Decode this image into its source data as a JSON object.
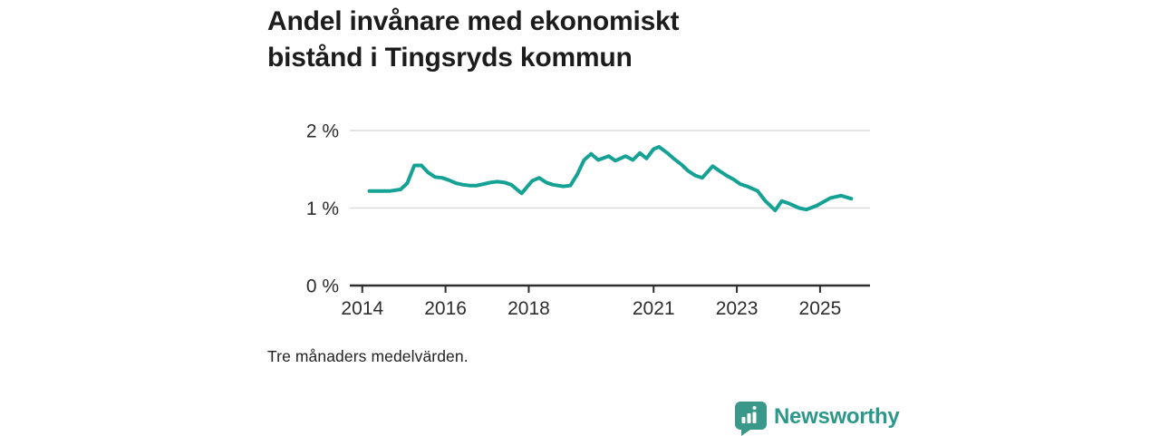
{
  "header": {
    "title": "Andel invånare med ekonomiskt bistånd i Tingsryds kommun",
    "title_lines": [
      "Andel invånare med ekonomiskt",
      "bistånd i Tingsryds kommun"
    ]
  },
  "footnote": "Tre månaders medelvärden.",
  "branding": {
    "name": "Newsworthy",
    "logo_icon": "bar-chart-speech-bubble-icon",
    "brand_color": "#2d9889"
  },
  "chart_data": {
    "type": "line",
    "title": "Andel invånare med ekonomiskt bistånd i Tingsryds kommun",
    "subtitle": "Tre månaders medelvärden.",
    "xlabel": "",
    "ylabel": "",
    "x_unit": "year",
    "xlim": [
      2013.7,
      2026.2
    ],
    "ylim": [
      0,
      2
    ],
    "grid": "horizontal",
    "legend": "none",
    "line_color": "#15a294",
    "grid_color": "#dbdbdb",
    "axis_color": "#2d2d2d",
    "yticks": [
      {
        "value": 0,
        "label": "0 %"
      },
      {
        "value": 1,
        "label": "1 %"
      },
      {
        "value": 2,
        "label": "2 %"
      }
    ],
    "xticks": [
      {
        "value": 2014,
        "label": "2014"
      },
      {
        "value": 2016,
        "label": "2016"
      },
      {
        "value": 2018,
        "label": "2018"
      },
      {
        "value": 2021,
        "label": "2021"
      },
      {
        "value": 2023,
        "label": "2023"
      },
      {
        "value": 2025,
        "label": "2025"
      }
    ],
    "series": [
      {
        "name": "Andel invånare med ekonomiskt bistånd (%)",
        "points": [
          [
            2014.17,
            1.22
          ],
          [
            2014.42,
            1.22
          ],
          [
            2014.67,
            1.22
          ],
          [
            2014.92,
            1.24
          ],
          [
            2015.08,
            1.32
          ],
          [
            2015.25,
            1.55
          ],
          [
            2015.42,
            1.55
          ],
          [
            2015.58,
            1.46
          ],
          [
            2015.75,
            1.4
          ],
          [
            2015.92,
            1.39
          ],
          [
            2016.08,
            1.36
          ],
          [
            2016.25,
            1.32
          ],
          [
            2016.42,
            1.3
          ],
          [
            2016.58,
            1.29
          ],
          [
            2016.75,
            1.29
          ],
          [
            2016.92,
            1.31
          ],
          [
            2017.08,
            1.33
          ],
          [
            2017.25,
            1.34
          ],
          [
            2017.42,
            1.33
          ],
          [
            2017.58,
            1.3
          ],
          [
            2017.83,
            1.19
          ],
          [
            2018.08,
            1.35
          ],
          [
            2018.25,
            1.39
          ],
          [
            2018.42,
            1.33
          ],
          [
            2018.58,
            1.3
          ],
          [
            2018.83,
            1.28
          ],
          [
            2019.0,
            1.29
          ],
          [
            2019.17,
            1.44
          ],
          [
            2019.33,
            1.62
          ],
          [
            2019.5,
            1.7
          ],
          [
            2019.67,
            1.62
          ],
          [
            2019.92,
            1.67
          ],
          [
            2020.08,
            1.61
          ],
          [
            2020.33,
            1.67
          ],
          [
            2020.5,
            1.62
          ],
          [
            2020.67,
            1.71
          ],
          [
            2020.83,
            1.64
          ],
          [
            2021.0,
            1.76
          ],
          [
            2021.13,
            1.79
          ],
          [
            2021.33,
            1.71
          ],
          [
            2021.5,
            1.63
          ],
          [
            2021.67,
            1.56
          ],
          [
            2021.83,
            1.48
          ],
          [
            2022.0,
            1.42
          ],
          [
            2022.17,
            1.39
          ],
          [
            2022.42,
            1.54
          ],
          [
            2022.58,
            1.48
          ],
          [
            2022.75,
            1.42
          ],
          [
            2022.92,
            1.37
          ],
          [
            2023.08,
            1.31
          ],
          [
            2023.25,
            1.28
          ],
          [
            2023.5,
            1.22
          ],
          [
            2023.67,
            1.1
          ],
          [
            2023.92,
            0.97
          ],
          [
            2024.08,
            1.09
          ],
          [
            2024.25,
            1.06
          ],
          [
            2024.5,
            1.0
          ],
          [
            2024.67,
            0.98
          ],
          [
            2024.92,
            1.03
          ],
          [
            2025.08,
            1.08
          ],
          [
            2025.25,
            1.13
          ],
          [
            2025.5,
            1.16
          ],
          [
            2025.75,
            1.12
          ]
        ]
      }
    ]
  }
}
